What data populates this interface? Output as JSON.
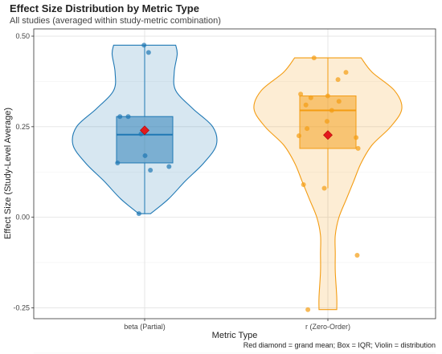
{
  "header": {
    "title": "Effect Size Distribution by Metric Type",
    "subtitle": "All studies (averaged within study-metric combination)"
  },
  "footer": {
    "caption": "Red diamond = grand mean; Box = IQR; Violin = distribution"
  },
  "colors": {
    "beta": "#1f78b4",
    "r": "#f39c12",
    "mean_marker": "#e31a1c",
    "grid": "#e6e6e6",
    "panel_border": "#333333"
  },
  "chart_data": {
    "type": "violin",
    "title": "Effect Size Distribution by Metric Type",
    "subtitle": "All studies (averaged within study-metric combination)",
    "xlabel": "Metric Type",
    "ylabel": "Effect Size (Study-Level Average)",
    "ylim": [
      -0.28,
      0.52
    ],
    "yticks": [
      -0.25,
      0.0,
      0.25,
      0.5
    ],
    "ytick_labels": [
      "-0.25",
      "0.00",
      "0.25",
      "0.50"
    ],
    "grid": true,
    "categories": [
      "beta (Partial)",
      "r (Zero-Order)"
    ],
    "series": [
      {
        "name": "beta (Partial)",
        "color": "#1f78b4",
        "box": {
          "q1": 0.15,
          "median": 0.228,
          "q3": 0.278,
          "whisker_low": 0.01,
          "whisker_high": 0.475
        },
        "mean": 0.24,
        "points": [
          0.475,
          0.455,
          0.278,
          0.278,
          0.23,
          0.17,
          0.15,
          0.14,
          0.13,
          0.01
        ],
        "violin": [
          [
            0.01,
            0.08
          ],
          [
            0.05,
            0.32
          ],
          [
            0.1,
            0.55
          ],
          [
            0.15,
            0.8
          ],
          [
            0.2,
            0.97
          ],
          [
            0.25,
            0.92
          ],
          [
            0.3,
            0.65
          ],
          [
            0.35,
            0.42
          ],
          [
            0.4,
            0.4
          ],
          [
            0.45,
            0.44
          ],
          [
            0.475,
            0.42
          ]
        ]
      },
      {
        "name": "r (Zero-Order)",
        "color": "#f39c12",
        "box": {
          "q1": 0.19,
          "median": 0.295,
          "q3": 0.335,
          "whisker_low": 0.08,
          "whisker_high": 0.44
        },
        "mean": 0.227,
        "points": [
          0.44,
          0.4,
          0.38,
          0.34,
          0.335,
          0.33,
          0.32,
          0.31,
          0.295,
          0.265,
          0.245,
          0.225,
          0.22,
          0.19,
          0.09,
          0.08,
          -0.105,
          -0.255
        ],
        "violin": [
          [
            -0.255,
            0.12
          ],
          [
            -0.22,
            0.12
          ],
          [
            -0.15,
            0.1
          ],
          [
            -0.1,
            0.1
          ],
          [
            -0.05,
            0.1
          ],
          [
            0.0,
            0.15
          ],
          [
            0.05,
            0.25
          ],
          [
            0.1,
            0.35
          ],
          [
            0.15,
            0.45
          ],
          [
            0.2,
            0.6
          ],
          [
            0.25,
            0.85
          ],
          [
            0.3,
            1.0
          ],
          [
            0.35,
            0.9
          ],
          [
            0.4,
            0.6
          ],
          [
            0.44,
            0.45
          ]
        ]
      }
    ]
  }
}
